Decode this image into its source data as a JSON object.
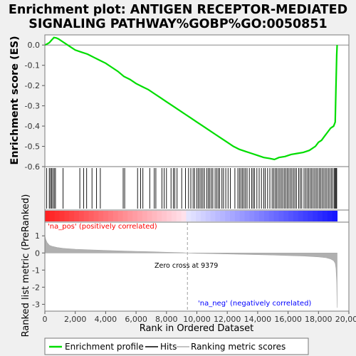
{
  "title_line1": "Enrichment plot: ANTIGEN RECEPTOR-MEDIATED",
  "title_line2": "SIGNALING PATHWAY%GOBP%GO:0050851",
  "legend": {
    "enrichment_label": "Enrichment profile",
    "hits_label": "Hits",
    "metric_label": "Ranking metric scores"
  },
  "colors": {
    "enrichment": "#00dd00",
    "hits": "#000000",
    "metric": "#b0b0b0",
    "pos": "#ff0000",
    "neg": "#0000ff",
    "zero_line": "#a0a0a0"
  },
  "chart_data": [
    {
      "type": "line",
      "name": "enrichment-profile",
      "ylabel": "Enrichment score (ES)",
      "xlim": [
        0,
        20000
      ],
      "ylim": [
        -0.6,
        0.05
      ],
      "yticks": [
        "0.0",
        "-0.1",
        "-0.2",
        "-0.3",
        "-0.4",
        "-0.5",
        "-0.6"
      ],
      "ytick_values": [
        0.0,
        -0.1,
        -0.2,
        -0.3,
        -0.4,
        -0.5,
        -0.6
      ],
      "x": [
        0,
        150,
        300,
        450,
        600,
        750,
        900,
        1200,
        1600,
        2000,
        2400,
        2800,
        3200,
        3600,
        4000,
        4400,
        4800,
        5200,
        5600,
        6000,
        6400,
        6800,
        7200,
        7600,
        8000,
        8400,
        8800,
        9200,
        9600,
        10000,
        10400,
        10800,
        11200,
        11600,
        12000,
        12400,
        12800,
        13200,
        13600,
        14000,
        14400,
        14800,
        15100,
        15400,
        15800,
        16200,
        16600,
        17000,
        17400,
        17800,
        18000,
        18200,
        18400,
        18600,
        18800,
        19000,
        19100,
        19150,
        19200,
        19229
      ],
      "y": [
        0.0,
        0.005,
        0.012,
        0.025,
        0.037,
        0.035,
        0.03,
        0.015,
        -0.005,
        -0.025,
        -0.035,
        -0.045,
        -0.06,
        -0.075,
        -0.09,
        -0.11,
        -0.13,
        -0.155,
        -0.17,
        -0.19,
        -0.205,
        -0.22,
        -0.24,
        -0.26,
        -0.28,
        -0.3,
        -0.32,
        -0.34,
        -0.36,
        -0.38,
        -0.4,
        -0.42,
        -0.44,
        -0.46,
        -0.48,
        -0.5,
        -0.515,
        -0.525,
        -0.535,
        -0.545,
        -0.555,
        -0.56,
        -0.565,
        -0.555,
        -0.55,
        -0.54,
        -0.535,
        -0.53,
        -0.52,
        -0.5,
        -0.48,
        -0.47,
        -0.45,
        -0.43,
        -0.41,
        -0.4,
        -0.38,
        -0.2,
        -0.05,
        0.0
      ]
    },
    {
      "type": "scatter",
      "name": "hits",
      "xlim": [
        0,
        20000
      ],
      "x": [
        120,
        290,
        370,
        450,
        530,
        620,
        700,
        1200,
        2300,
        2550,
        2750,
        3100,
        3400,
        3650,
        5150,
        5250,
        6100,
        6300,
        6450,
        6900,
        7200,
        7300,
        7700,
        7850,
        8000,
        8300,
        8450,
        8550,
        8700,
        9000,
        9250,
        9450,
        9600,
        9750,
        9850,
        10000,
        10100,
        10200,
        10300,
        10400,
        10500,
        10650,
        10750,
        10850,
        10950,
        11050,
        11200,
        11300,
        11400,
        11500,
        11650,
        11750,
        11900,
        12050,
        12200,
        12500,
        12700,
        12800,
        12900,
        13000,
        13100,
        13200,
        13300,
        13450,
        13600,
        13700,
        13800,
        13950,
        14100,
        14250,
        14400,
        14500,
        14650,
        14800,
        14950,
        15050,
        15150,
        15250,
        15350,
        15450,
        15550,
        15650,
        15750,
        15850,
        15950,
        16050,
        16150,
        16250,
        16350,
        16450,
        16550,
        16700,
        16800,
        16900,
        17050,
        17150,
        17250,
        17350,
        17450,
        17550,
        17650,
        17750,
        17850,
        17950,
        18050,
        18150,
        18250,
        18350,
        18450,
        18550,
        18650,
        18750,
        18850,
        18950,
        19050,
        19100,
        19150,
        19200
      ]
    },
    {
      "type": "area",
      "name": "ranking-metric",
      "xlabel": "Rank in Ordered Dataset",
      "ylabel": "Ranked list metric (PreRanked)",
      "xlim": [
        0,
        20000
      ],
      "ylim": [
        -3.4,
        1.8
      ],
      "xticks": [
        "0",
        "2,000",
        "4,000",
        "6,000",
        "8,000",
        "10,000",
        "12,000",
        "14,000",
        "16,000",
        "18,000",
        "20,000"
      ],
      "xtick_values": [
        0,
        2000,
        4000,
        6000,
        8000,
        10000,
        12000,
        14000,
        16000,
        18000,
        20000
      ],
      "yticks": [
        "1",
        "0",
        "-1",
        "-2",
        "-3"
      ],
      "ytick_values": [
        1,
        0,
        -1,
        -2,
        -3
      ],
      "x": [
        0,
        50,
        150,
        300,
        500,
        800,
        1200,
        2000,
        3000,
        4000,
        5000,
        6000,
        7000,
        8000,
        9000,
        9379,
        10000,
        11000,
        12000,
        13000,
        14000,
        15000,
        16000,
        17000,
        18000,
        18500,
        18800,
        19000,
        19100,
        19150,
        19200,
        19229
      ],
      "y": [
        1.0,
        0.8,
        0.6,
        0.45,
        0.38,
        0.32,
        0.27,
        0.22,
        0.18,
        0.15,
        0.12,
        0.09,
        0.07,
        0.04,
        0.02,
        0.0,
        -0.02,
        -0.04,
        -0.06,
        -0.08,
        -0.1,
        -0.12,
        -0.15,
        -0.18,
        -0.23,
        -0.28,
        -0.35,
        -0.45,
        -0.6,
        -0.9,
        -1.7,
        -3.2
      ],
      "annotations": {
        "pos_label": "'na_pos' (positively correlated)",
        "neg_label": "'na_neg' (negatively correlated)",
        "zero_cross": "Zero cross at 9379"
      },
      "zero_cross_x": 9379
    }
  ]
}
